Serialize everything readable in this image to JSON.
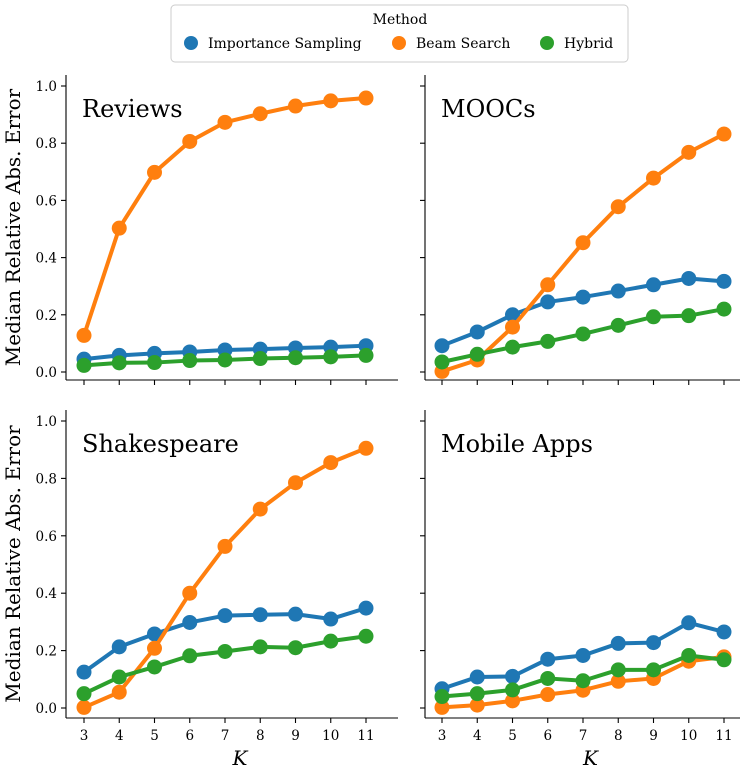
{
  "colors": {
    "Importance Sampling": "#1f77b4",
    "Beam Search": "#ff7f0e",
    "Hybrid": "#2ca02c"
  },
  "legend": {
    "title": "Method",
    "items": [
      "Importance Sampling",
      "Beam Search",
      "Hybrid"
    ]
  },
  "chart_data": [
    {
      "type": "line",
      "title": "Reviews",
      "xlabel": "",
      "ylabel": "Median Relative Abs. Error",
      "x": [
        3,
        4,
        5,
        6,
        7,
        8,
        9,
        10,
        11
      ],
      "ylim": [
        0.0,
        1.0
      ],
      "yticks": [
        "0.0",
        "0.2",
        "0.4",
        "0.6",
        "0.8",
        "1.0"
      ],
      "xticks": [],
      "series": [
        {
          "name": "Importance Sampling",
          "values": [
            0.045,
            0.058,
            0.065,
            0.07,
            0.077,
            0.08,
            0.084,
            0.087,
            0.092
          ]
        },
        {
          "name": "Beam Search",
          "values": [
            0.128,
            0.503,
            0.698,
            0.806,
            0.873,
            0.903,
            0.93,
            0.948,
            0.958
          ]
        },
        {
          "name": "Hybrid",
          "values": [
            0.023,
            0.032,
            0.033,
            0.04,
            0.042,
            0.047,
            0.05,
            0.053,
            0.058
          ]
        }
      ]
    },
    {
      "type": "line",
      "title": "MOOCs",
      "xlabel": "",
      "ylabel": "",
      "x": [
        3,
        4,
        5,
        6,
        7,
        8,
        9,
        10,
        11
      ],
      "ylim": [
        0.0,
        1.0
      ],
      "yticks": [],
      "xticks": [],
      "series": [
        {
          "name": "Importance Sampling",
          "values": [
            0.092,
            0.14,
            0.2,
            0.245,
            0.262,
            0.283,
            0.305,
            0.327,
            0.317
          ]
        },
        {
          "name": "Beam Search",
          "values": [
            0.002,
            0.042,
            0.157,
            0.305,
            0.452,
            0.578,
            0.678,
            0.768,
            0.832
          ]
        },
        {
          "name": "Hybrid",
          "values": [
            0.035,
            0.062,
            0.087,
            0.107,
            0.133,
            0.163,
            0.193,
            0.197,
            0.22
          ]
        }
      ]
    },
    {
      "type": "line",
      "title": "Shakespeare",
      "xlabel": "K",
      "ylabel": "Median Relative Abs. Error",
      "x": [
        3,
        4,
        5,
        6,
        7,
        8,
        9,
        10,
        11
      ],
      "ylim": [
        0.0,
        1.0
      ],
      "yticks": [
        "0.0",
        "0.2",
        "0.4",
        "0.6",
        "0.8",
        "1.0"
      ],
      "xticks": [
        "3",
        "4",
        "5",
        "6",
        "7",
        "8",
        "9",
        "10",
        "11"
      ],
      "series": [
        {
          "name": "Importance Sampling",
          "values": [
            0.125,
            0.213,
            0.258,
            0.298,
            0.322,
            0.325,
            0.327,
            0.31,
            0.348
          ]
        },
        {
          "name": "Beam Search",
          "values": [
            0.002,
            0.055,
            0.208,
            0.4,
            0.563,
            0.693,
            0.785,
            0.855,
            0.905
          ]
        },
        {
          "name": "Hybrid",
          "values": [
            0.05,
            0.108,
            0.143,
            0.182,
            0.197,
            0.213,
            0.21,
            0.233,
            0.25
          ]
        }
      ]
    },
    {
      "type": "line",
      "title": "Mobile Apps",
      "xlabel": "K",
      "ylabel": "",
      "x": [
        3,
        4,
        5,
        6,
        7,
        8,
        9,
        10,
        11
      ],
      "ylim": [
        0.0,
        1.0
      ],
      "yticks": [],
      "xticks": [
        "3",
        "4",
        "5",
        "6",
        "7",
        "8",
        "9",
        "10",
        "11"
      ],
      "series": [
        {
          "name": "Importance Sampling",
          "values": [
            0.067,
            0.108,
            0.11,
            0.17,
            0.183,
            0.225,
            0.228,
            0.297,
            0.265
          ]
        },
        {
          "name": "Beam Search",
          "values": [
            0.002,
            0.01,
            0.025,
            0.047,
            0.062,
            0.093,
            0.103,
            0.163,
            0.178
          ]
        },
        {
          "name": "Hybrid",
          "values": [
            0.04,
            0.05,
            0.063,
            0.103,
            0.095,
            0.133,
            0.133,
            0.183,
            0.168
          ]
        }
      ]
    }
  ]
}
